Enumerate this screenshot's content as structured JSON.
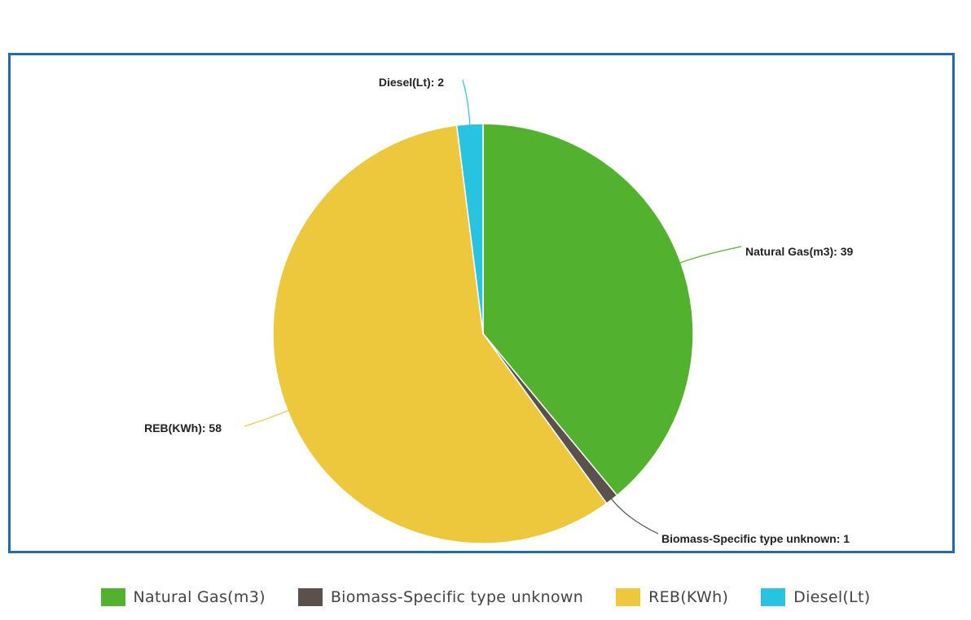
{
  "chart_data": {
    "type": "pie",
    "title": "",
    "labels": [
      "Natural Gas(m3)",
      "Biomass-Specific type unknown",
      "REB(KWh)",
      "Diesel(Lt)"
    ],
    "values": [
      39,
      1,
      58,
      2
    ],
    "colors": [
      "#52b22e",
      "#5b514c",
      "#eec83c",
      "#27c3e0"
    ],
    "data_labels": [
      "Natural Gas(m3): 39",
      "Biomass-Specific type unknown: 1",
      "REB(KWh): 58",
      "Diesel(Lt): 2"
    ],
    "legend": {
      "position": "bottom",
      "items": [
        "Natural Gas(m3)",
        "Biomass-Specific type unknown",
        "REB(KWh)",
        "Diesel(Lt)"
      ]
    }
  }
}
